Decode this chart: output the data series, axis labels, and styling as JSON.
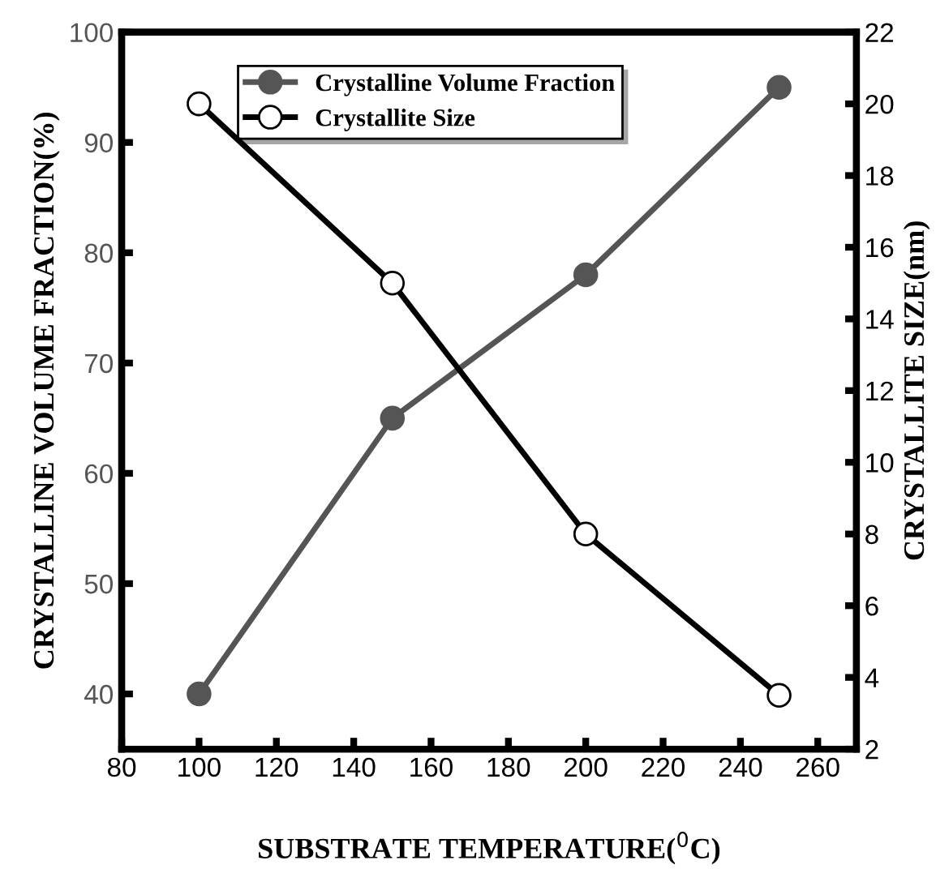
{
  "chart_data": {
    "type": "line",
    "xlabel": "SUBSTRATE TEMPERATURE($^{0}$C)",
    "ylabel": "CRYSTALLINE VOLUME FRACTION(%)",
    "y2label": "CRYSTALLITE SIZE(nm)",
    "x": [
      100,
      150,
      200,
      250
    ],
    "series": [
      {
        "name": "Crystalline Volume Fraction",
        "color": "#555555",
        "values": [
          40,
          65,
          78,
          95
        ],
        "marker": "circle"
      },
      {
        "name": "Crystallite Size",
        "color": "#000000",
        "values": [
          20,
          15,
          8,
          3.5
        ],
        "axis": "y2",
        "marker": "circle"
      }
    ],
    "xlim": [
      80,
      270
    ],
    "xticks": [
      80,
      100,
      120,
      140,
      160,
      180,
      200,
      220,
      240,
      260
    ],
    "ylim": [
      35,
      100
    ],
    "yticks": [
      40,
      50,
      60,
      70,
      80,
      90,
      100
    ],
    "y2lim": [
      2,
      22
    ],
    "y2ticks": [
      2,
      4,
      6,
      8,
      10,
      12,
      14,
      16,
      18,
      20,
      22
    ],
    "legend": "top",
    "grid": false,
    "line_style": "solid"
  }
}
